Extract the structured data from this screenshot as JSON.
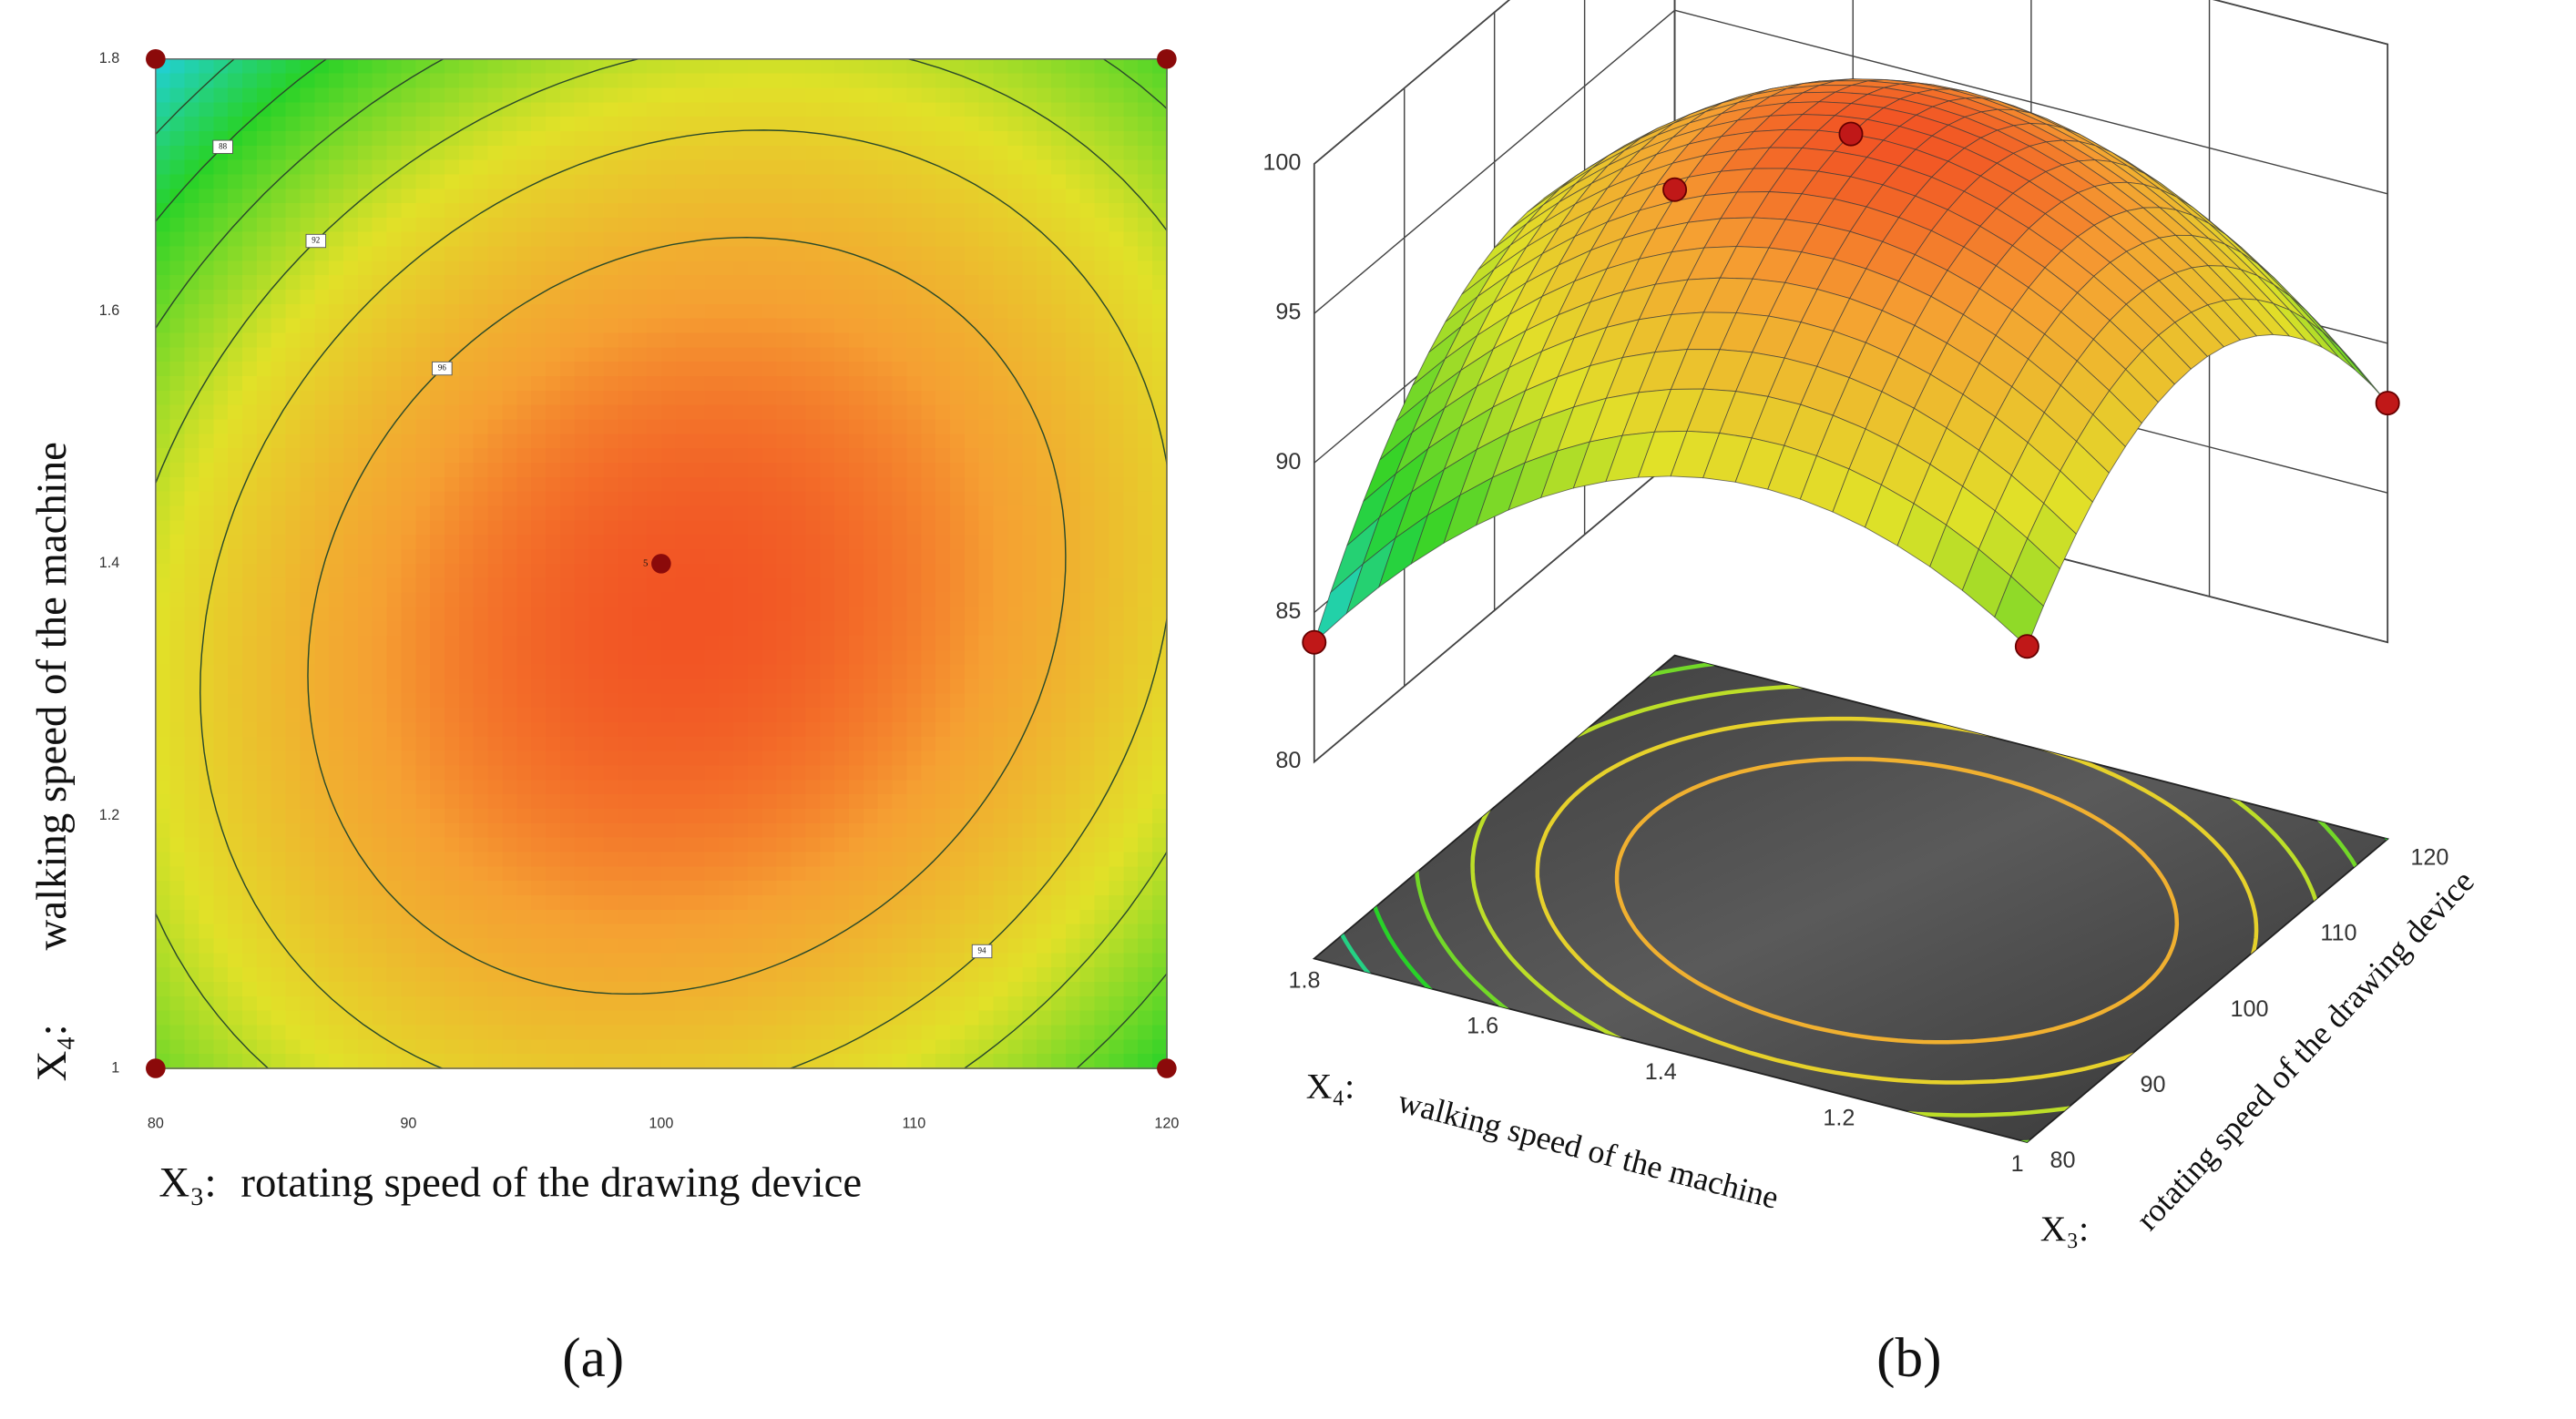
{
  "chart_data": [
    {
      "type": "contour",
      "x_symbol": "X₃:",
      "xlabel": "rotating speed of the drawing device",
      "y_symbol": "X₄:",
      "ylabel": "walking speed of the machine",
      "xlim": [
        80,
        120
      ],
      "xticks": [
        80,
        90,
        100,
        110,
        120
      ],
      "ylim": [
        1,
        1.8
      ],
      "yticks": [
        1,
        1.2,
        1.4,
        1.6,
        1.8
      ],
      "contour_levels": [
        86,
        88,
        90,
        92,
        94,
        96
      ],
      "points": {
        "x": [
          80,
          80,
          100,
          120,
          120
        ],
        "y": [
          1,
          1.8,
          1.4,
          1,
          1.8
        ],
        "labels": [
          null,
          null,
          5,
          null,
          null
        ]
      },
      "point_color": "#8b0a0a",
      "caption": "(a)"
    },
    {
      "type": "surface3d",
      "x_symbol": "X₃:",
      "xlabel": "rotating speed of the drawing device",
      "y_symbol": "X₄:",
      "ylabel": "walking speed of the machine",
      "xlim": [
        80,
        120
      ],
      "xticks": [
        80,
        90,
        100,
        110,
        120
      ],
      "ylim": [
        1,
        1.8
      ],
      "yticks": [
        1,
        1.2,
        1.4,
        1.6,
        1.8
      ],
      "zlim": [
        80,
        100
      ],
      "zticks": [
        80,
        85,
        90,
        95,
        100
      ],
      "points": {
        "x": [
          80,
          80,
          100,
          120,
          120
        ],
        "y": [
          1,
          1.8,
          1.4,
          1,
          1.8
        ],
        "z": [
          90,
          84,
          99,
          88,
          89
        ]
      },
      "point_color": "#c01818",
      "caption": "(b)"
    }
  ]
}
